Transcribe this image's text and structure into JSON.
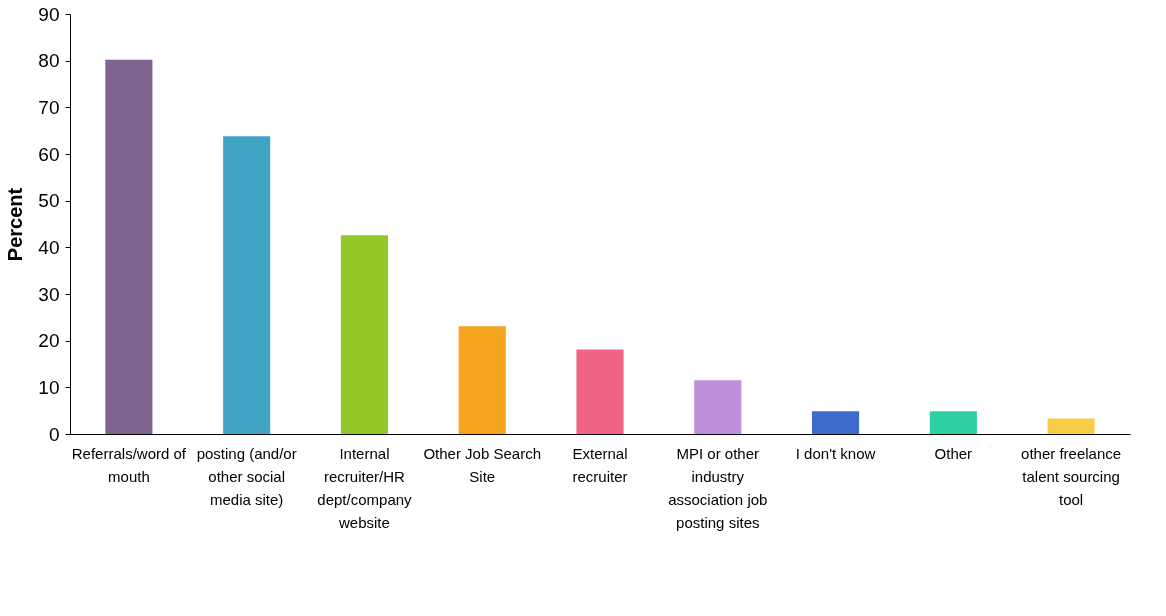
{
  "chart_data": {
    "type": "bar",
    "ylabel": "Percent",
    "categories": [
      "Referrals/word of mouth",
      "posting (and/or other social media site)",
      "Internal recruiter/HR dept/company website",
      "Other Job Search Site",
      "External recruiter",
      "MPI or other industry association job posting sites",
      "I don't know",
      "Other",
      "other freelance talent sourcing tool"
    ],
    "values": [
      80.2,
      63.8,
      42.6,
      23.1,
      18.1,
      11.5,
      4.9,
      4.9,
      3.3
    ],
    "colors": [
      "#7f6391",
      "#41a3c4",
      "#93c926",
      "#f4a41c",
      "#f06487",
      "#c08fd9",
      "#3d6bcc",
      "#2ecfa3",
      "#f7cd47"
    ],
    "ylim": [
      0,
      90
    ],
    "yticks": [
      0,
      10,
      20,
      30,
      40,
      50,
      60,
      70,
      80,
      90
    ],
    "grid": false
  }
}
